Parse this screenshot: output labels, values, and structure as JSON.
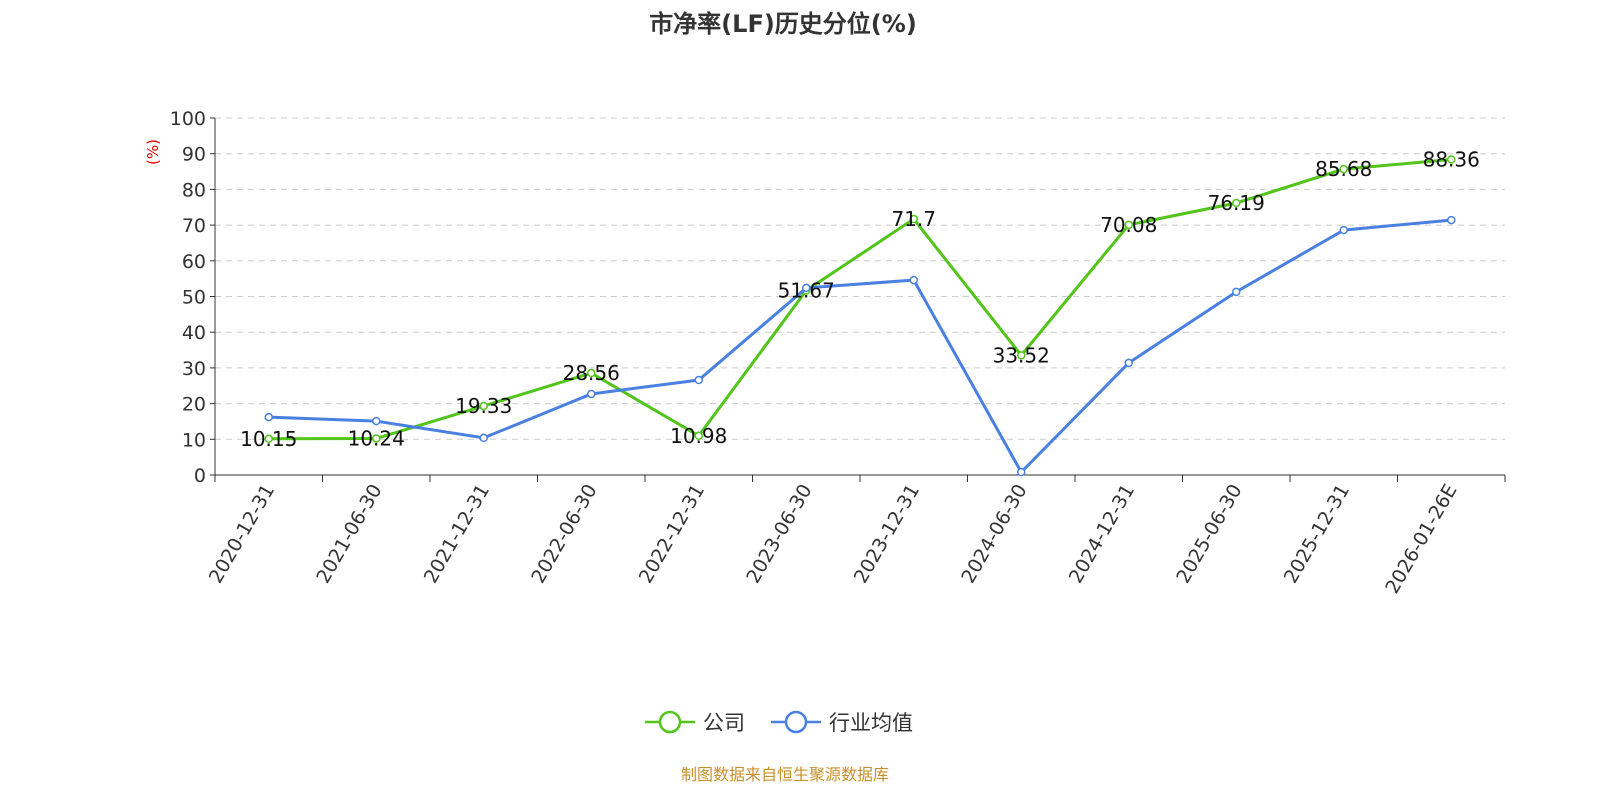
{
  "chart_data": {
    "type": "line",
    "title": "市净率(LF)历史分位(%)",
    "ylabel": "(%)",
    "xlabel": "",
    "ylim": [
      0,
      100
    ],
    "yticks": [
      0,
      10,
      20,
      30,
      40,
      50,
      60,
      70,
      80,
      90,
      100
    ],
    "grid": true,
    "legend_position": "bottom-center",
    "categories": [
      "2020-12-31",
      "2021-06-30",
      "2021-12-31",
      "2022-06-30",
      "2022-12-31",
      "2023-06-30",
      "2023-12-31",
      "2024-06-30",
      "2024-12-31",
      "2025-06-30",
      "2025-12-31",
      "2026-01-26E"
    ],
    "series": [
      {
        "name": "公司",
        "color": "#52c41a",
        "values": [
          10.15,
          10.24,
          19.33,
          28.56,
          10.98,
          51.67,
          71.7,
          33.52,
          70.08,
          76.19,
          85.68,
          88.36
        ],
        "labels": [
          "10.15",
          "10.24",
          "19.33",
          "28.56",
          "10.98",
          "51.67",
          "71.7",
          "33.52",
          "70.08",
          "76.19",
          "85.68",
          "88.36"
        ]
      },
      {
        "name": "行业均值",
        "color": "#4a80e0",
        "values": [
          16.2,
          15.1,
          10.4,
          22.7,
          26.6,
          52.4,
          54.6,
          0.8,
          31.4,
          51.3,
          68.6,
          71.4
        ]
      }
    ],
    "source": "制图数据来自恒生聚源数据库"
  }
}
